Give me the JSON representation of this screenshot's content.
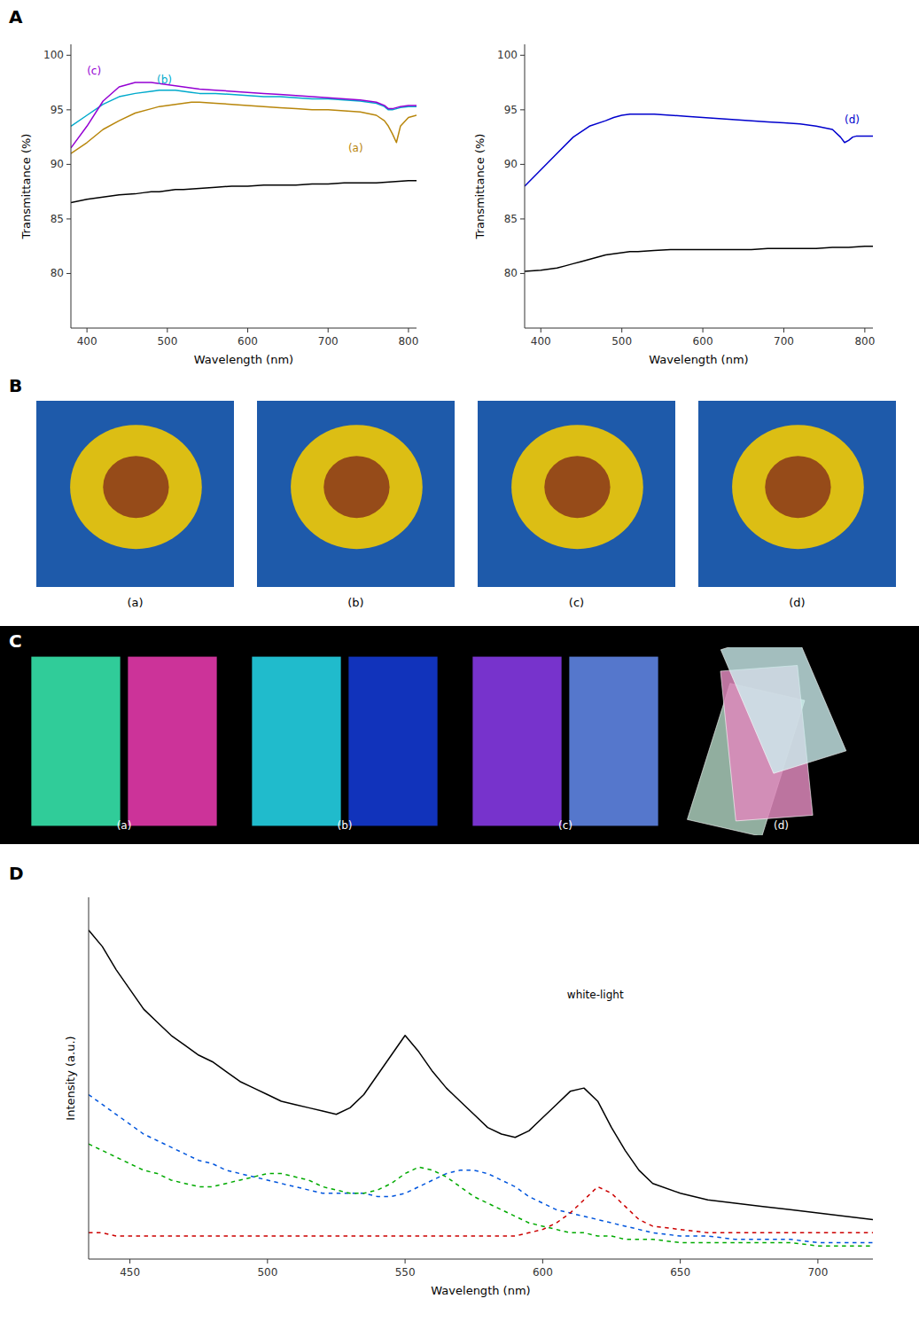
{
  "chart_data": [
    {
      "type": "line",
      "title": "A",
      "xlabel": "Wavelength (nm)",
      "ylabel": "Transmittance (%)",
      "xlim": [
        380,
        810
      ],
      "ylim": [
        75,
        101
      ],
      "xticks": [
        400,
        500,
        600,
        700,
        800
      ],
      "yticks": [
        80,
        85,
        90,
        95,
        100
      ],
      "series": [
        {
          "color": "#000000",
          "x": [
            380,
            400,
            420,
            440,
            460,
            470,
            480,
            490,
            500,
            510,
            520,
            540,
            560,
            580,
            600,
            620,
            640,
            660,
            680,
            700,
            720,
            740,
            760,
            780,
            800,
            810
          ],
          "values": [
            86.5,
            86.8,
            87.0,
            87.2,
            87.3,
            87.4,
            87.5,
            87.5,
            87.6,
            87.7,
            87.7,
            87.8,
            87.9,
            88.0,
            88.0,
            88.1,
            88.1,
            88.1,
            88.2,
            88.2,
            88.3,
            88.3,
            88.3,
            88.4,
            88.5,
            88.5
          ]
        },
        {
          "color": "#B8860B",
          "x": [
            380,
            400,
            420,
            440,
            460,
            480,
            490,
            500,
            510,
            520,
            530,
            540,
            560,
            580,
            600,
            620,
            640,
            660,
            680,
            700,
            720,
            740,
            760,
            770,
            775,
            780,
            785,
            790,
            800,
            810
          ],
          "values": [
            91.0,
            92.0,
            93.2,
            94.0,
            94.7,
            95.1,
            95.3,
            95.4,
            95.5,
            95.6,
            95.7,
            95.7,
            95.6,
            95.5,
            95.4,
            95.3,
            95.2,
            95.1,
            95.0,
            95.0,
            94.9,
            94.8,
            94.5,
            94.0,
            93.5,
            92.8,
            92.0,
            93.5,
            94.3,
            94.5
          ]
        },
        {
          "color": "#00AACC",
          "x": [
            380,
            400,
            420,
            440,
            460,
            480,
            490,
            500,
            510,
            520,
            530,
            540,
            560,
            580,
            600,
            620,
            640,
            660,
            680,
            700,
            720,
            740,
            760,
            770,
            775,
            780,
            785,
            790,
            800,
            810
          ],
          "values": [
            93.5,
            94.5,
            95.5,
            96.2,
            96.5,
            96.7,
            96.8,
            96.8,
            96.8,
            96.7,
            96.6,
            96.5,
            96.5,
            96.4,
            96.3,
            96.2,
            96.2,
            96.1,
            96.0,
            96.0,
            95.9,
            95.8,
            95.6,
            95.3,
            95.0,
            95.0,
            95.1,
            95.2,
            95.3,
            95.3
          ]
        },
        {
          "color": "#9400D3",
          "x": [
            380,
            400,
            420,
            440,
            460,
            480,
            490,
            500,
            510,
            520,
            530,
            540,
            560,
            580,
            600,
            620,
            640,
            660,
            680,
            700,
            720,
            740,
            760,
            770,
            775,
            780,
            785,
            790,
            800,
            810
          ],
          "values": [
            91.5,
            93.5,
            95.8,
            97.1,
            97.5,
            97.5,
            97.4,
            97.3,
            97.2,
            97.1,
            97.0,
            96.9,
            96.8,
            96.7,
            96.6,
            96.5,
            96.4,
            96.3,
            96.2,
            96.1,
            96.0,
            95.9,
            95.7,
            95.4,
            95.1,
            95.1,
            95.2,
            95.3,
            95.4,
            95.4
          ]
        }
      ],
      "annotations": [
        {
          "text": "(a)",
          "x": 725,
          "y": 91.2,
          "color": "#B8860B"
        },
        {
          "text": "(b)",
          "x": 487,
          "y": 97.4,
          "color": "#00AACC"
        },
        {
          "text": "(c)",
          "x": 400,
          "y": 98.2,
          "color": "#9400D3"
        }
      ]
    },
    {
      "type": "line",
      "xlabel": "Wavelength (nm)",
      "ylabel": "Transmittance (%)",
      "xlim": [
        380,
        810
      ],
      "ylim": [
        75,
        101
      ],
      "xticks": [
        400,
        500,
        600,
        700,
        800
      ],
      "yticks": [
        80,
        85,
        90,
        95,
        100
      ],
      "series": [
        {
          "color": "#000000",
          "x": [
            380,
            400,
            410,
            420,
            430,
            440,
            450,
            460,
            470,
            480,
            490,
            500,
            510,
            520,
            540,
            560,
            580,
            600,
            620,
            640,
            660,
            680,
            700,
            720,
            740,
            760,
            780,
            800,
            810
          ],
          "values": [
            80.2,
            80.3,
            80.4,
            80.5,
            80.7,
            80.9,
            81.1,
            81.3,
            81.5,
            81.7,
            81.8,
            81.9,
            82.0,
            82.0,
            82.1,
            82.2,
            82.2,
            82.2,
            82.2,
            82.2,
            82.2,
            82.3,
            82.3,
            82.3,
            82.3,
            82.4,
            82.4,
            82.5,
            82.5
          ]
        },
        {
          "color": "#0000CD",
          "x": [
            380,
            400,
            420,
            440,
            460,
            480,
            490,
            500,
            510,
            520,
            530,
            540,
            560,
            580,
            600,
            620,
            640,
            660,
            680,
            700,
            720,
            740,
            760,
            770,
            775,
            780,
            785,
            790,
            800,
            810
          ],
          "values": [
            88.0,
            89.5,
            91.0,
            92.5,
            93.5,
            94.0,
            94.3,
            94.5,
            94.6,
            94.6,
            94.6,
            94.6,
            94.5,
            94.4,
            94.3,
            94.2,
            94.1,
            94.0,
            93.9,
            93.8,
            93.7,
            93.5,
            93.2,
            92.5,
            92.0,
            92.2,
            92.5,
            92.6,
            92.6,
            92.6
          ]
        }
      ],
      "annotations": [
        {
          "text": "(d)",
          "x": 775,
          "y": 93.8,
          "color": "#0000CD"
        }
      ]
    },
    {
      "type": "image",
      "title": "B",
      "labels": [
        "(a)",
        "(b)",
        "(c)",
        "(d)"
      ],
      "colors": [
        "#1E5AAA",
        "#DCBE14",
        "#964B19"
      ]
    },
    {
      "type": "image",
      "title": "C",
      "labels": [
        "(a)",
        "(b)",
        "(c)",
        "(d)"
      ],
      "colors": [
        [
          "#30CC99",
          "#CC3399"
        ],
        [
          "#20BBCC",
          "#1133BB"
        ],
        [
          "#7733CC",
          "#5577CC"
        ],
        [
          "#AACCBB",
          "#DD88BB",
          "#CCEEEE"
        ]
      ]
    },
    {
      "type": "line",
      "title": "D",
      "xlabel": "Wavelength (nm)",
      "ylabel": "Intensity (a.u.)",
      "xlim": [
        435,
        720
      ],
      "ylim": [
        0,
        1.1
      ],
      "xticks": [
        450,
        500,
        550,
        600,
        650,
        700
      ],
      "yticks": [],
      "tick_labels": "x",
      "x": [
        435,
        440,
        445,
        450,
        455,
        460,
        465,
        470,
        475,
        480,
        485,
        490,
        495,
        500,
        505,
        510,
        515,
        520,
        525,
        530,
        535,
        540,
        545,
        550,
        555,
        560,
        565,
        570,
        575,
        580,
        585,
        590,
        595,
        600,
        605,
        610,
        615,
        620,
        625,
        630,
        635,
        640,
        650,
        660,
        670,
        680,
        690,
        700,
        710,
        720
      ],
      "series": [
        {
          "color": "#000000",
          "line_style": "solid",
          "values": [
            1.0,
            0.95,
            0.88,
            0.82,
            0.76,
            0.72,
            0.68,
            0.65,
            0.62,
            0.6,
            0.57,
            0.54,
            0.52,
            0.5,
            0.48,
            0.47,
            0.46,
            0.45,
            0.44,
            0.46,
            0.5,
            0.56,
            0.62,
            0.68,
            0.63,
            0.57,
            0.52,
            0.48,
            0.44,
            0.4,
            0.38,
            0.37,
            0.39,
            0.43,
            0.47,
            0.51,
            0.52,
            0.48,
            0.4,
            0.33,
            0.27,
            0.23,
            0.2,
            0.18,
            0.17,
            0.16,
            0.15,
            0.14,
            0.13,
            0.12
          ]
        },
        {
          "color": "#0055DD",
          "line_style": "dashed",
          "values": [
            0.5,
            0.47,
            0.44,
            0.41,
            0.38,
            0.36,
            0.34,
            0.32,
            0.3,
            0.29,
            0.27,
            0.26,
            0.25,
            0.24,
            0.23,
            0.22,
            0.21,
            0.2,
            0.2,
            0.2,
            0.2,
            0.19,
            0.19,
            0.2,
            0.22,
            0.24,
            0.26,
            0.27,
            0.27,
            0.26,
            0.24,
            0.22,
            0.19,
            0.17,
            0.15,
            0.14,
            0.13,
            0.12,
            0.11,
            0.1,
            0.09,
            0.08,
            0.07,
            0.07,
            0.06,
            0.06,
            0.06,
            0.05,
            0.05,
            0.05
          ]
        },
        {
          "color": "#00AA00",
          "line_style": "dashed",
          "values": [
            0.35,
            0.33,
            0.31,
            0.29,
            0.27,
            0.26,
            0.24,
            0.23,
            0.22,
            0.22,
            0.23,
            0.24,
            0.25,
            0.26,
            0.26,
            0.25,
            0.24,
            0.22,
            0.21,
            0.2,
            0.2,
            0.21,
            0.23,
            0.26,
            0.28,
            0.27,
            0.25,
            0.22,
            0.19,
            0.17,
            0.15,
            0.13,
            0.11,
            0.1,
            0.09,
            0.08,
            0.08,
            0.07,
            0.07,
            0.06,
            0.06,
            0.06,
            0.05,
            0.05,
            0.05,
            0.05,
            0.05,
            0.04,
            0.04,
            0.04
          ]
        },
        {
          "color": "#CC0000",
          "line_style": "dashed",
          "values": [
            0.08,
            0.08,
            0.07,
            0.07,
            0.07,
            0.07,
            0.07,
            0.07,
            0.07,
            0.07,
            0.07,
            0.07,
            0.07,
            0.07,
            0.07,
            0.07,
            0.07,
            0.07,
            0.07,
            0.07,
            0.07,
            0.07,
            0.07,
            0.07,
            0.07,
            0.07,
            0.07,
            0.07,
            0.07,
            0.07,
            0.07,
            0.07,
            0.08,
            0.09,
            0.11,
            0.14,
            0.18,
            0.22,
            0.2,
            0.16,
            0.12,
            0.1,
            0.09,
            0.08,
            0.08,
            0.08,
            0.08,
            0.08,
            0.08,
            0.08
          ]
        }
      ],
      "annotations": [
        {
          "text": "white-light"
        }
      ]
    }
  ]
}
